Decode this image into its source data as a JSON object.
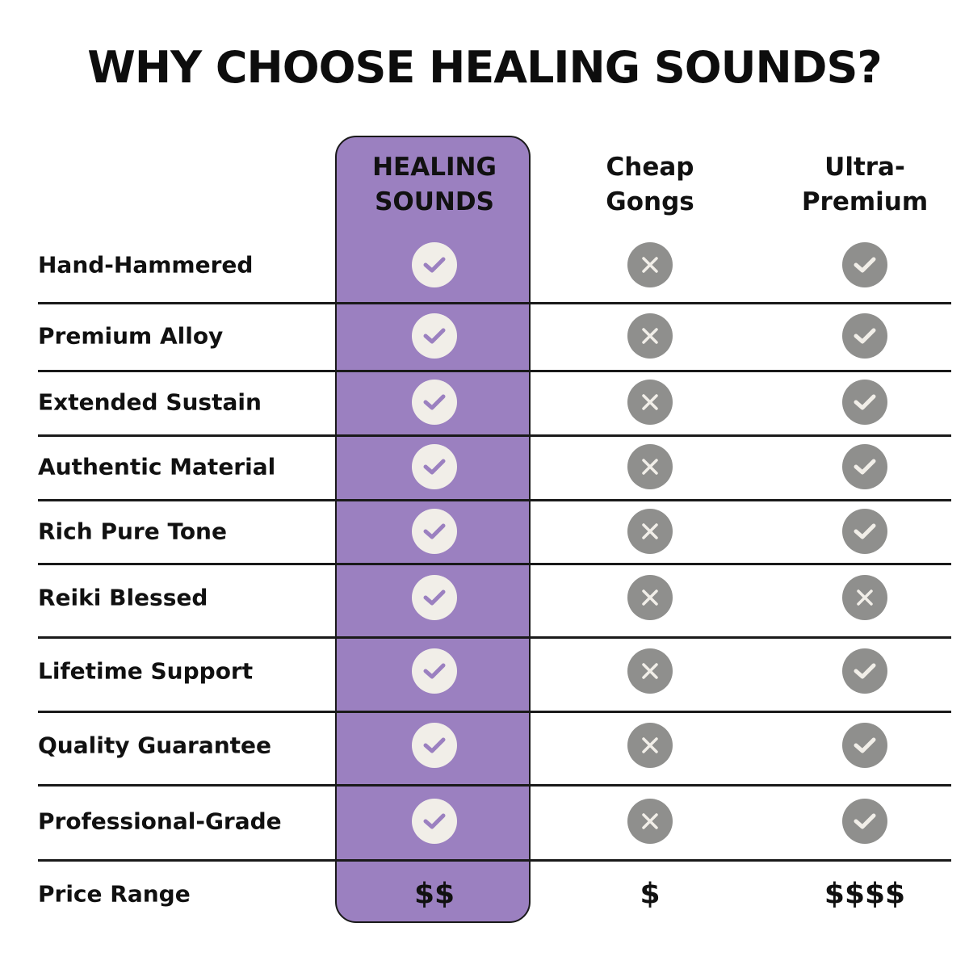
{
  "title": "WHY CHOOSE HEALING SOUNDS?",
  "colors": {
    "highlight": "#9b80c0",
    "icon_gray": "#8f8f8d",
    "icon_light": "#f1eee8"
  },
  "columns": [
    {
      "line1": "HEALING",
      "line2": "SOUNDS",
      "highlighted": true
    },
    {
      "line1": "Cheap",
      "line2": "Gongs",
      "highlighted": false
    },
    {
      "line1": "Ultra-",
      "line2": "Premium",
      "highlighted": false
    }
  ],
  "rows": [
    {
      "label": "Hand-Hammered",
      "values": [
        "check",
        "x",
        "check"
      ]
    },
    {
      "label": "Premium Alloy",
      "values": [
        "check",
        "x",
        "check"
      ]
    },
    {
      "label": "Extended Sustain",
      "values": [
        "check",
        "x",
        "check"
      ]
    },
    {
      "label": "Authentic Material",
      "values": [
        "check",
        "x",
        "check"
      ]
    },
    {
      "label": "Rich Pure Tone",
      "values": [
        "check",
        "x",
        "check"
      ]
    },
    {
      "label": "Reiki Blessed",
      "values": [
        "check",
        "x",
        "x"
      ]
    },
    {
      "label": "Lifetime Support",
      "values": [
        "check",
        "x",
        "check"
      ]
    },
    {
      "label": "Quality Guarantee",
      "values": [
        "check",
        "x",
        "check"
      ]
    },
    {
      "label": "Professional-Grade",
      "values": [
        "check",
        "x",
        "check"
      ]
    }
  ],
  "price_row": {
    "label": "Price Range",
    "values": [
      "$$",
      "$",
      "$$$$"
    ]
  }
}
